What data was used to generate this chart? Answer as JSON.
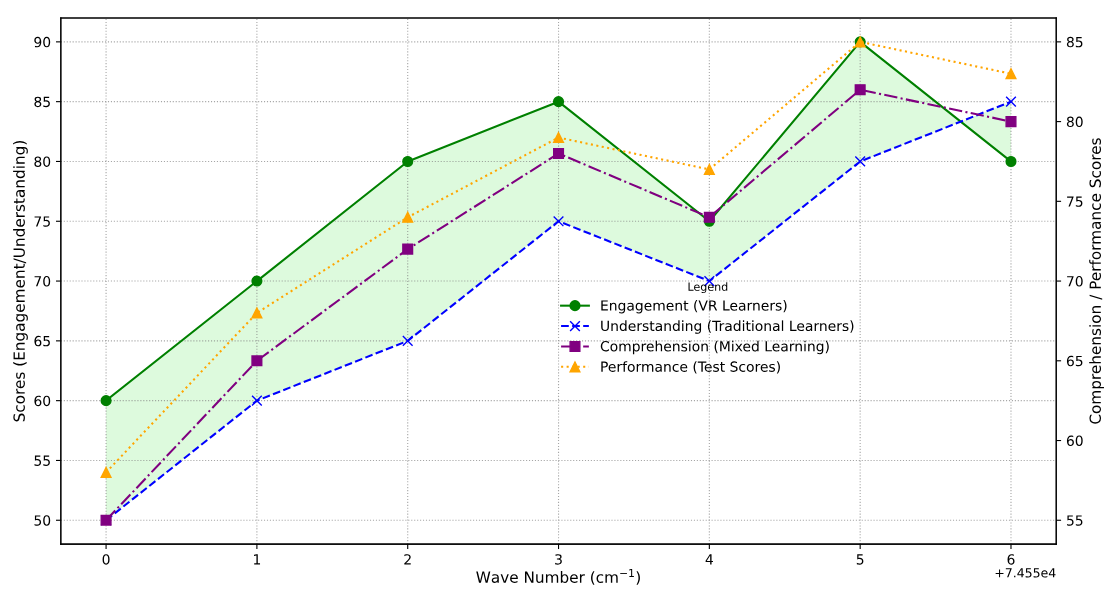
{
  "chart_data": {
    "type": "line",
    "x": [
      0,
      1,
      2,
      3,
      4,
      5,
      6
    ],
    "xlabel": "Wave Number (cm$^{−1}$)",
    "ylabel": "Scores (Engagement/Understanding)",
    "y2label": "Comprehension / Performance Scores",
    "legend_title": "Legend",
    "annotations": [
      "+7.455e4"
    ],
    "xlim": [
      -0.3,
      6.3
    ],
    "xticks": [
      0,
      1,
      2,
      3,
      4,
      5,
      6
    ],
    "ylim": [
      48,
      92
    ],
    "yticks": [
      50,
      55,
      60,
      65,
      70,
      75,
      80,
      85,
      90
    ],
    "y2lim": [
      53.5,
      86.5
    ],
    "y2ticks": [
      55,
      60,
      65,
      70,
      75,
      80,
      85
    ],
    "grid": true,
    "legend": "center",
    "series": [
      {
        "name": "Engagement (VR Learners)",
        "color": "#008000",
        "marker": "circle",
        "line_style": "solid",
        "values": [
          60,
          70,
          80,
          85,
          75,
          90,
          80
        ],
        "lower": [
          50,
          60,
          65,
          75,
          70,
          80,
          85
        ],
        "upper": [
          60,
          70,
          80,
          85,
          75,
          90,
          80
        ]
      },
      {
        "name": "Understanding (Traditional Learners)",
        "color": "#0000ff",
        "marker": "cross",
        "line_style": "dashed",
        "values": [
          50,
          60,
          65,
          75,
          70,
          80,
          85
        ]
      },
      {
        "name": "Comprehension (Mixed Learning)",
        "color": "#800080",
        "marker": "square",
        "line_style": "dashdot",
        "axis": "y2",
        "values": [
          55,
          65,
          72,
          78,
          74,
          82,
          80
        ]
      },
      {
        "name": "Performance (Test Scores)",
        "color": "#ffa500",
        "marker": "triangle",
        "line_style": "dotted",
        "axis": "y2",
        "values": [
          58,
          68,
          74,
          79,
          77,
          85,
          83
        ]
      }
    ]
  }
}
